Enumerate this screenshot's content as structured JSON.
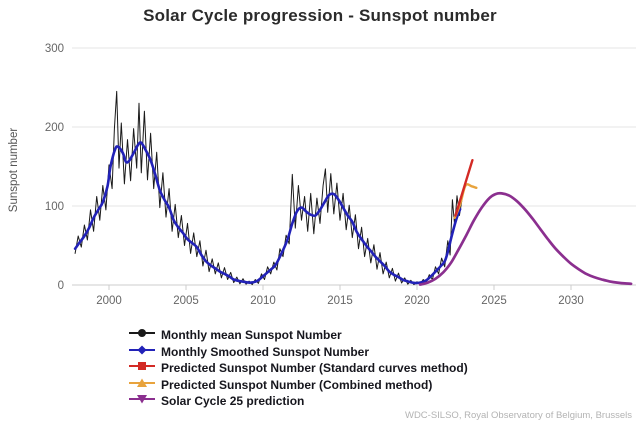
{
  "chart_data": {
    "type": "line",
    "title": "Solar Cycle progression - Sunspot number",
    "xlabel": "",
    "ylabel": "Sunspot number",
    "source": "WDC-SILSO, Royal Observatory of Belgium, Brussels",
    "xlim": [
      1997.5,
      2034.3
    ],
    "ylim": [
      0,
      300
    ],
    "xticks": [
      2000,
      2005,
      2010,
      2015,
      2020,
      2025,
      2030
    ],
    "yticks": [
      0,
      100,
      200,
      300
    ],
    "grid": "horizontal",
    "legend_position": "bottom-left",
    "series": [
      {
        "name": "Monthly mean Sunspot Number",
        "color": "#1a1a1a",
        "marker": "circle",
        "line_width": 1,
        "smooth": false,
        "points": [
          [
            1997.8,
            40
          ],
          [
            1998.0,
            62
          ],
          [
            1998.2,
            48
          ],
          [
            1998.4,
            76
          ],
          [
            1998.6,
            57
          ],
          [
            1998.8,
            95
          ],
          [
            1999.0,
            68
          ],
          [
            1999.2,
            112
          ],
          [
            1999.4,
            82
          ],
          [
            1999.6,
            126
          ],
          [
            1999.8,
            95
          ],
          [
            2000.0,
            152
          ],
          [
            2000.2,
            122
          ],
          [
            2000.35,
            198
          ],
          [
            2000.5,
            245
          ],
          [
            2000.65,
            148
          ],
          [
            2000.8,
            205
          ],
          [
            2001.0,
            128
          ],
          [
            2001.2,
            184
          ],
          [
            2001.4,
            132
          ],
          [
            2001.6,
            198
          ],
          [
            2001.8,
            148
          ],
          [
            2001.95,
            230
          ],
          [
            2002.1,
            142
          ],
          [
            2002.3,
            220
          ],
          [
            2002.5,
            133
          ],
          [
            2002.7,
            192
          ],
          [
            2002.9,
            122
          ],
          [
            2003.1,
            168
          ],
          [
            2003.3,
            98
          ],
          [
            2003.5,
            142
          ],
          [
            2003.7,
            86
          ],
          [
            2003.9,
            122
          ],
          [
            2004.1,
            68
          ],
          [
            2004.3,
            102
          ],
          [
            2004.5,
            60
          ],
          [
            2004.7,
            88
          ],
          [
            2004.9,
            50
          ],
          [
            2005.1,
            78
          ],
          [
            2005.3,
            40
          ],
          [
            2005.5,
            66
          ],
          [
            2005.7,
            36
          ],
          [
            2005.9,
            56
          ],
          [
            2006.1,
            24
          ],
          [
            2006.3,
            44
          ],
          [
            2006.5,
            17
          ],
          [
            2006.7,
            33
          ],
          [
            2006.9,
            14
          ],
          [
            2007.1,
            28
          ],
          [
            2007.3,
            9
          ],
          [
            2007.5,
            22
          ],
          [
            2007.7,
            7
          ],
          [
            2007.9,
            16
          ],
          [
            2008.1,
            3
          ],
          [
            2008.3,
            10
          ],
          [
            2008.5,
            1.5
          ],
          [
            2008.7,
            8
          ],
          [
            2008.9,
            1
          ],
          [
            2009.1,
            5
          ],
          [
            2009.3,
            0.5
          ],
          [
            2009.5,
            7
          ],
          [
            2009.7,
            2
          ],
          [
            2009.9,
            14
          ],
          [
            2010.1,
            7
          ],
          [
            2010.3,
            23
          ],
          [
            2010.5,
            14
          ],
          [
            2010.7,
            29
          ],
          [
            2010.9,
            19
          ],
          [
            2011.1,
            46
          ],
          [
            2011.3,
            36
          ],
          [
            2011.5,
            63
          ],
          [
            2011.7,
            52
          ],
          [
            2011.9,
            140
          ],
          [
            2012.1,
            72
          ],
          [
            2012.3,
            126
          ],
          [
            2012.5,
            82
          ],
          [
            2012.7,
            112
          ],
          [
            2012.9,
            68
          ],
          [
            2013.1,
            116
          ],
          [
            2013.3,
            65
          ],
          [
            2013.5,
            110
          ],
          [
            2013.7,
            78
          ],
          [
            2013.9,
            126
          ],
          [
            2014.05,
            147
          ],
          [
            2014.2,
            92
          ],
          [
            2014.4,
            141
          ],
          [
            2014.6,
            90
          ],
          [
            2014.8,
            129
          ],
          [
            2015.0,
            82
          ],
          [
            2015.2,
            116
          ],
          [
            2015.4,
            70
          ],
          [
            2015.6,
            101
          ],
          [
            2015.8,
            60
          ],
          [
            2016.0,
            89
          ],
          [
            2016.2,
            46
          ],
          [
            2016.4,
            73
          ],
          [
            2016.6,
            36
          ],
          [
            2016.8,
            59
          ],
          [
            2017.0,
            28
          ],
          [
            2017.2,
            51
          ],
          [
            2017.4,
            20
          ],
          [
            2017.6,
            41
          ],
          [
            2017.8,
            14
          ],
          [
            2018.0,
            29
          ],
          [
            2018.2,
            9
          ],
          [
            2018.4,
            21
          ],
          [
            2018.6,
            5
          ],
          [
            2018.8,
            15
          ],
          [
            2019.0,
            2.5
          ],
          [
            2019.2,
            9
          ],
          [
            2019.4,
            1
          ],
          [
            2019.6,
            6
          ],
          [
            2019.8,
            0.5
          ],
          [
            2020.0,
            4
          ],
          [
            2020.2,
            1
          ],
          [
            2020.4,
            7
          ],
          [
            2020.6,
            3
          ],
          [
            2020.8,
            13
          ],
          [
            2021.0,
            7
          ],
          [
            2021.2,
            23
          ],
          [
            2021.4,
            14
          ],
          [
            2021.6,
            34
          ],
          [
            2021.8,
            23
          ],
          [
            2022.0,
            56
          ],
          [
            2022.15,
            38
          ],
          [
            2022.3,
            108
          ],
          [
            2022.45,
            75
          ],
          [
            2022.6,
            113
          ],
          [
            2022.75,
            88
          ],
          [
            2022.9,
            106
          ]
        ]
      },
      {
        "name": "Monthly Smoothed Sunspot Number",
        "color": "#2222b8",
        "marker": "diamond",
        "line_width": 2.6,
        "smooth": true,
        "points": [
          [
            1997.8,
            46
          ],
          [
            1998.1,
            54
          ],
          [
            1998.4,
            62
          ],
          [
            1998.7,
            72
          ],
          [
            1999.0,
            85
          ],
          [
            1999.3,
            95
          ],
          [
            1999.6,
            105
          ],
          [
            1999.9,
            125
          ],
          [
            2000.1,
            150
          ],
          [
            2000.4,
            172
          ],
          [
            2000.6,
            175
          ],
          [
            2000.9,
            167
          ],
          [
            2001.1,
            156
          ],
          [
            2001.3,
            157
          ],
          [
            2001.6,
            167
          ],
          [
            2001.9,
            178
          ],
          [
            2002.1,
            180
          ],
          [
            2002.4,
            170
          ],
          [
            2002.7,
            158
          ],
          [
            2003.0,
            140
          ],
          [
            2003.3,
            120
          ],
          [
            2003.6,
            108
          ],
          [
            2003.9,
            98
          ],
          [
            2004.2,
            82
          ],
          [
            2004.5,
            73
          ],
          [
            2004.8,
            66
          ],
          [
            2005.1,
            58
          ],
          [
            2005.4,
            53
          ],
          [
            2005.7,
            48
          ],
          [
            2006.0,
            38
          ],
          [
            2006.3,
            30
          ],
          [
            2006.6,
            25
          ],
          [
            2006.9,
            21
          ],
          [
            2007.2,
            17
          ],
          [
            2007.5,
            14
          ],
          [
            2007.8,
            11
          ],
          [
            2008.1,
            7
          ],
          [
            2008.5,
            5
          ],
          [
            2008.9,
            3.5
          ],
          [
            2009.2,
            3
          ],
          [
            2009.6,
            5
          ],
          [
            2010.0,
            11
          ],
          [
            2010.4,
            18
          ],
          [
            2010.8,
            25
          ],
          [
            2011.2,
            40
          ],
          [
            2011.6,
            58
          ],
          [
            2011.9,
            78
          ],
          [
            2012.2,
            93
          ],
          [
            2012.5,
            98
          ],
          [
            2012.8,
            93
          ],
          [
            2013.1,
            89
          ],
          [
            2013.4,
            88
          ],
          [
            2013.7,
            95
          ],
          [
            2014.0,
            105
          ],
          [
            2014.3,
            114
          ],
          [
            2014.6,
            115
          ],
          [
            2014.9,
            108
          ],
          [
            2015.2,
            98
          ],
          [
            2015.5,
            88
          ],
          [
            2015.8,
            80
          ],
          [
            2016.1,
            67
          ],
          [
            2016.4,
            58
          ],
          [
            2016.7,
            50
          ],
          [
            2017.0,
            43
          ],
          [
            2017.3,
            36
          ],
          [
            2017.6,
            30
          ],
          [
            2017.9,
            24
          ],
          [
            2018.2,
            17
          ],
          [
            2018.5,
            13
          ],
          [
            2018.8,
            10
          ],
          [
            2019.1,
            6.5
          ],
          [
            2019.4,
            4.5
          ],
          [
            2019.7,
            3
          ],
          [
            2020.0,
            2.5
          ],
          [
            2020.3,
            3.5
          ],
          [
            2020.6,
            6
          ],
          [
            2020.9,
            11
          ],
          [
            2021.2,
            17
          ],
          [
            2021.5,
            23
          ],
          [
            2021.8,
            30
          ],
          [
            2022.0,
            42
          ],
          [
            2022.2,
            58
          ],
          [
            2022.4,
            73
          ],
          [
            2022.6,
            86
          ],
          [
            2022.8,
            96
          ]
        ]
      },
      {
        "name": "Predicted Sunspot Number (Combined method)",
        "color": "#e8a33d",
        "marker": "triangle-up",
        "line_width": 2.4,
        "smooth": true,
        "points": [
          [
            2022.45,
            85
          ],
          [
            2022.8,
            102
          ],
          [
            2023.15,
            126
          ],
          [
            2023.55,
            125
          ],
          [
            2023.85,
            123
          ]
        ]
      },
      {
        "name": "Predicted Sunspot Number (Standard curves method)",
        "color": "#d32a25",
        "marker": "square",
        "line_width": 2.4,
        "smooth": true,
        "points": [
          [
            2022.5,
            88
          ],
          [
            2023.0,
            120
          ],
          [
            2023.6,
            158
          ]
        ]
      },
      {
        "name": "Solar Cycle 25 prediction",
        "color": "#8b2f8f",
        "marker": "triangle-down",
        "line_width": 2.7,
        "smooth": true,
        "points": [
          [
            2020.2,
            0.5
          ],
          [
            2020.7,
            3
          ],
          [
            2021.2,
            8
          ],
          [
            2021.7,
            16
          ],
          [
            2022.2,
            28
          ],
          [
            2022.7,
            45
          ],
          [
            2023.2,
            63
          ],
          [
            2023.7,
            82
          ],
          [
            2024.2,
            98
          ],
          [
            2024.7,
            110
          ],
          [
            2025.1,
            115
          ],
          [
            2025.5,
            116
          ],
          [
            2026.0,
            113
          ],
          [
            2026.5,
            106
          ],
          [
            2027.0,
            96
          ],
          [
            2027.5,
            84
          ],
          [
            2028.0,
            71
          ],
          [
            2028.5,
            58
          ],
          [
            2029.0,
            46
          ],
          [
            2029.5,
            36
          ],
          [
            2030.0,
            27
          ],
          [
            2030.5,
            20
          ],
          [
            2031.0,
            14
          ],
          [
            2031.5,
            10
          ],
          [
            2032.0,
            7
          ],
          [
            2032.5,
            4.5
          ],
          [
            2033.0,
            3
          ],
          [
            2033.5,
            2
          ],
          [
            2033.9,
            1.5
          ]
        ]
      }
    ],
    "legend_order": [
      0,
      1,
      3,
      2,
      4
    ]
  },
  "style": {
    "grid_color": "#e6e6e6",
    "axis_line_color": "#cccccc",
    "tick_label_color": "#666666",
    "background": "#ffffff"
  }
}
